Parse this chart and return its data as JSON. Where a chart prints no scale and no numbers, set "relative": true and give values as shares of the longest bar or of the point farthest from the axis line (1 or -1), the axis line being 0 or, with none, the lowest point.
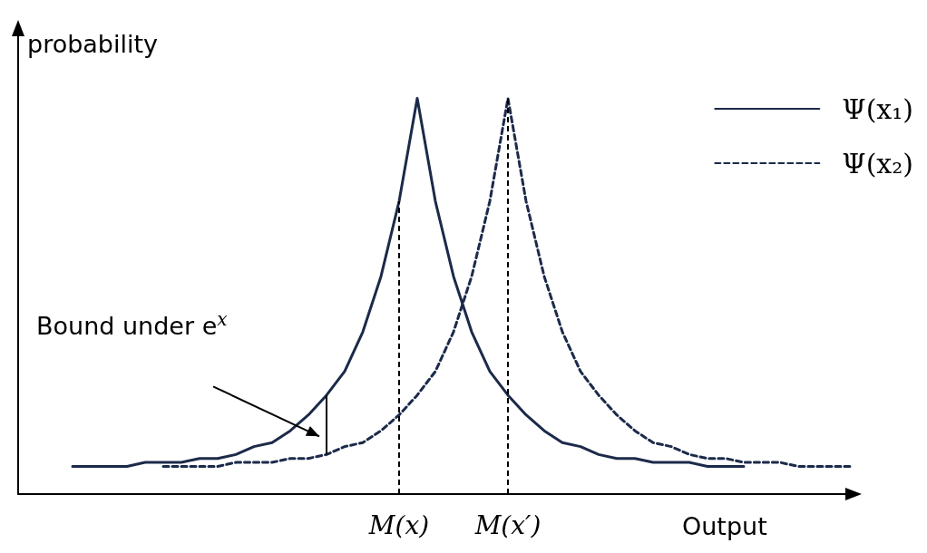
{
  "chart_data": {
    "type": "line",
    "relative": true,
    "xlabel": "Output",
    "ylabel": "probability",
    "annotations": [
      "Bound under e$^{x}$"
    ],
    "categories": [
      null,
      null,
      null,
      null,
      null,
      null,
      null,
      null,
      null,
      null,
      null,
      null,
      null,
      null,
      null,
      null,
      null,
      null,
      null,
      null,
      null,
      "M(x)",
      null,
      null,
      null,
      null,
      null,
      "M(x′)",
      null,
      null,
      null,
      null,
      null,
      null,
      null,
      null,
      null,
      null,
      null,
      null,
      null,
      null,
      null,
      null,
      null,
      null,
      null
    ],
    "series": [
      {
        "name": "Ψ(x₁)",
        "color": "#1c2a4a",
        "line_style": "solid",
        "values": [
          null,
          null,
          null,
          0.07,
          0.07,
          0.07,
          0.07,
          0.08,
          0.08,
          0.08,
          0.09,
          0.09,
          0.1,
          0.12,
          0.13,
          0.16,
          0.2,
          0.25,
          0.31,
          0.41,
          0.55,
          0.74,
          1,
          0.74,
          0.55,
          0.41,
          0.31,
          0.25,
          0.2,
          0.16,
          0.13,
          0.12,
          0.1,
          0.09,
          0.09,
          0.08,
          0.08,
          0.08,
          0.07,
          0.07,
          0.07,
          null,
          null,
          null,
          null,
          null,
          null
        ]
      },
      {
        "name": "Ψ(x₂)",
        "color": "#1c2a4a",
        "line_style": "dashed",
        "values": [
          null,
          null,
          null,
          null,
          null,
          null,
          null,
          null,
          0.07,
          0.07,
          0.07,
          0.07,
          0.08,
          0.08,
          0.08,
          0.09,
          0.09,
          0.1,
          0.12,
          0.13,
          0.16,
          0.2,
          0.25,
          0.31,
          0.41,
          0.55,
          0.74,
          1,
          0.74,
          0.55,
          0.41,
          0.31,
          0.25,
          0.2,
          0.16,
          0.13,
          0.12,
          0.1,
          0.09,
          0.09,
          0.08,
          0.08,
          0.08,
          0.07,
          0.07,
          0.07,
          0.07
        ]
      }
    ],
    "ref_lines": [
      {
        "axis": "x",
        "value": "M(x)",
        "color": "#000000",
        "line_style": "dashed"
      },
      {
        "axis": "x",
        "value": "M(x′)",
        "color": "#000000",
        "line_style": "dashed"
      }
    ],
    "legend": "top right",
    "marker": "none",
    "grid": false,
    "tick_labels": "x"
  }
}
